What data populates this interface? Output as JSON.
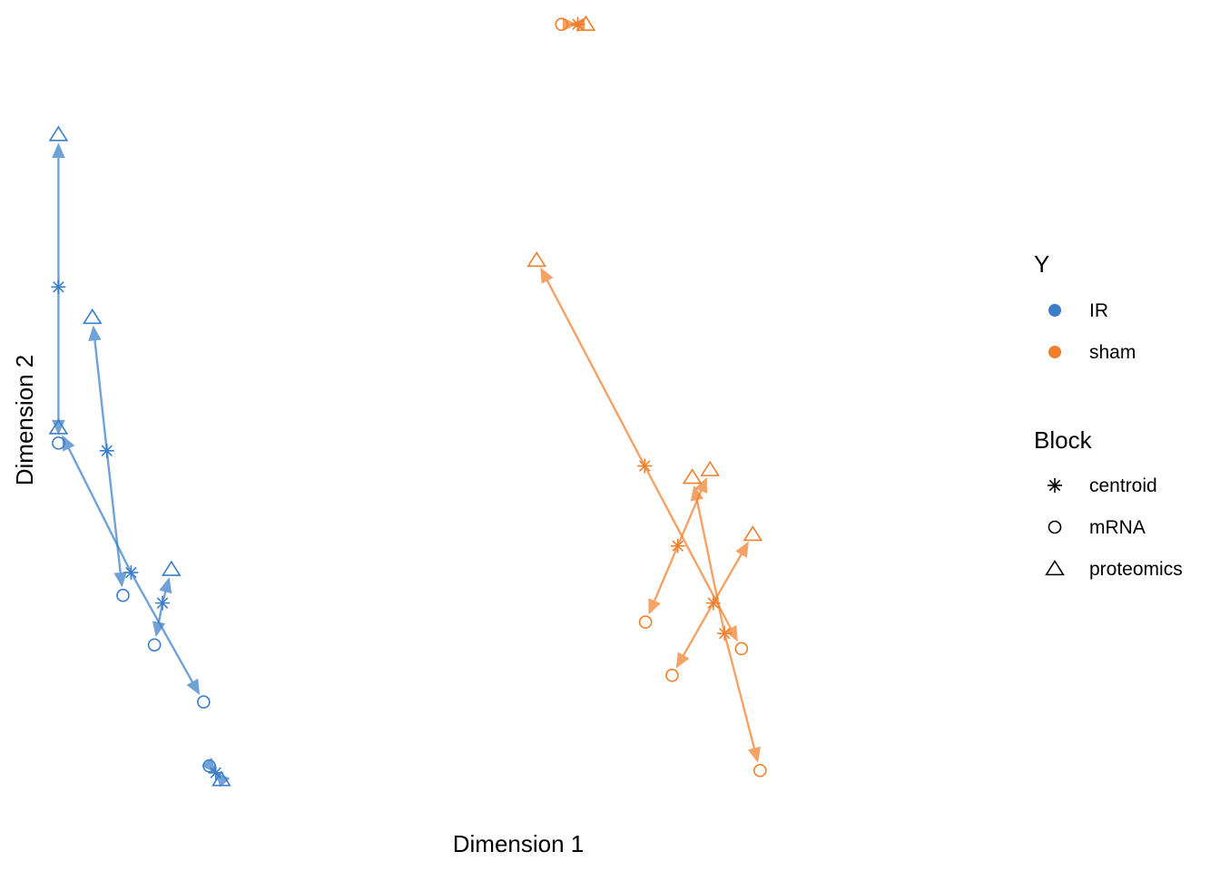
{
  "chart_data": {
    "type": "scatter",
    "xlabel": "Dimension 1",
    "ylabel": "Dimension 2",
    "grid": false,
    "legend_position": "right",
    "legend": {
      "color_title": "Y",
      "color_entries": [
        {
          "name": "IR",
          "color": "#3a7dc9"
        },
        {
          "name": "sham",
          "color": "#f07f2c"
        }
      ],
      "shape_title": "Block",
      "shape_entries": [
        {
          "name": "centroid",
          "shape": "asterisk"
        },
        {
          "name": "mRNA",
          "shape": "circle"
        },
        {
          "name": "proteomics",
          "shape": "triangle"
        }
      ]
    },
    "xlim": [
      -0.05,
      1.15
    ],
    "ylim": [
      -0.05,
      1.02
    ],
    "samples": [
      {
        "group": "IR",
        "centroid": [
          0.0,
          0.655
        ],
        "mRNA": [
          0.0,
          0.45
        ],
        "proteomics": [
          0.0,
          0.855
        ]
      },
      {
        "group": "IR",
        "centroid": [
          0.06,
          0.44
        ],
        "mRNA": [
          0.08,
          0.25
        ],
        "proteomics": [
          0.042,
          0.615
        ]
      },
      {
        "group": "IR",
        "centroid": [
          0.09,
          0.28
        ],
        "mRNA": [
          0.18,
          0.11
        ],
        "proteomics": [
          0.0,
          0.47
        ]
      },
      {
        "group": "IR",
        "centroid": [
          0.129,
          0.24
        ],
        "mRNA": [
          0.119,
          0.185
        ],
        "proteomics": [
          0.14,
          0.284
        ]
      },
      {
        "group": "IR",
        "centroid": [
          0.195,
          0.017
        ],
        "mRNA": [
          0.187,
          0.026
        ],
        "proteomics": [
          0.202,
          0.008
        ]
      },
      {
        "group": "sham",
        "centroid": [
          0.644,
          1.0
        ],
        "mRNA": [
          0.624,
          1.0
        ],
        "proteomics": [
          0.654,
          1.0
        ]
      },
      {
        "group": "sham",
        "centroid": [
          0.727,
          0.42
        ],
        "mRNA": [
          0.847,
          0.18
        ],
        "proteomics": [
          0.593,
          0.69
        ]
      },
      {
        "group": "sham",
        "centroid": [
          0.768,
          0.315
        ],
        "mRNA": [
          0.728,
          0.215
        ],
        "proteomics": [
          0.808,
          0.415
        ]
      },
      {
        "group": "sham",
        "centroid": [
          0.812,
          0.24
        ],
        "mRNA": [
          0.761,
          0.145
        ],
        "proteomics": [
          0.861,
          0.33
        ]
      },
      {
        "group": "sham",
        "centroid": [
          0.826,
          0.2
        ],
        "mRNA": [
          0.87,
          0.02
        ],
        "proteomics": [
          0.786,
          0.405
        ]
      }
    ]
  }
}
